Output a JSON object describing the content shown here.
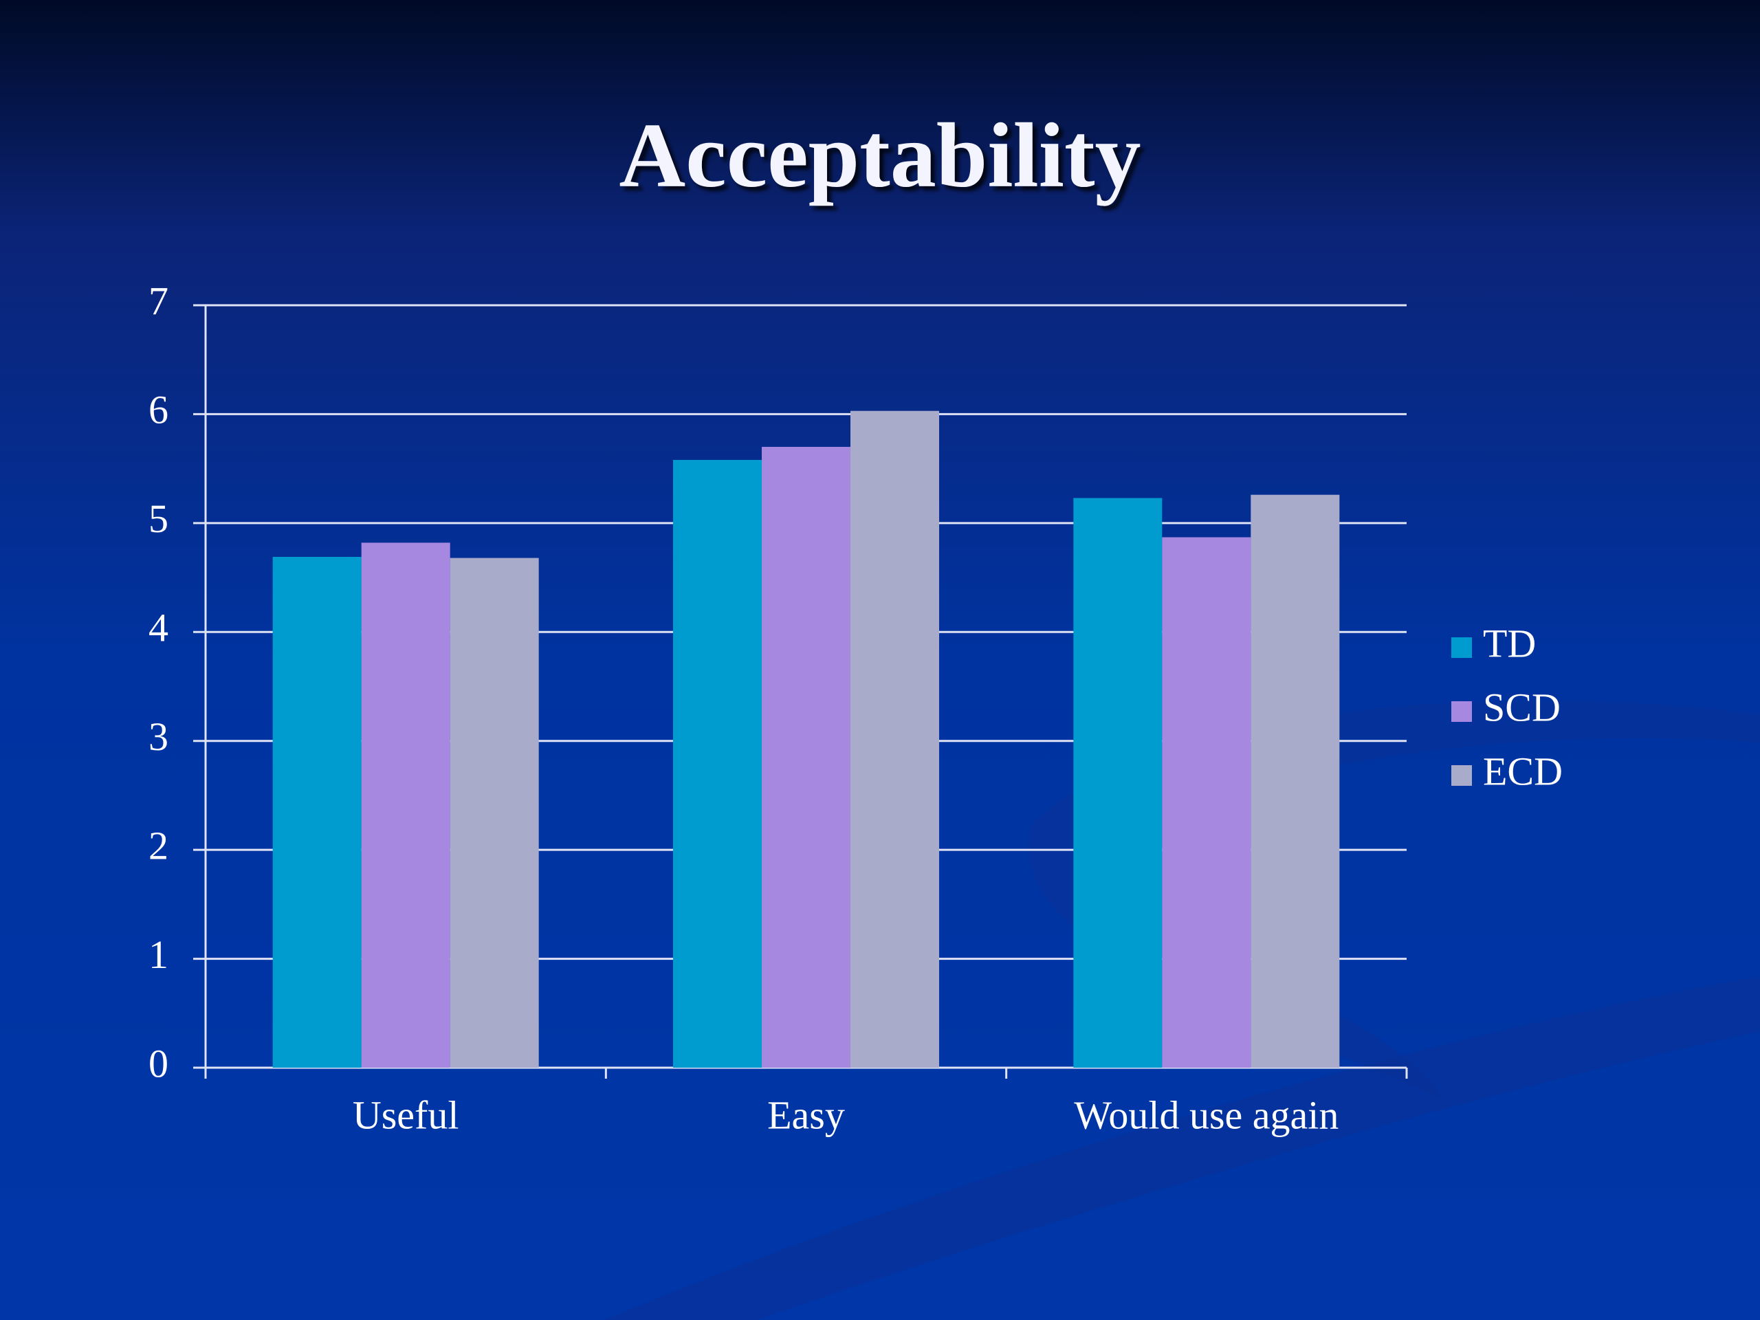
{
  "chart_data": {
    "type": "bar",
    "title": "Acceptability",
    "categories": [
      "Useful",
      "Easy",
      "Would use again"
    ],
    "series": [
      {
        "name": "TD",
        "color": "#009ccf",
        "values": [
          4.69,
          5.58,
          5.23
        ]
      },
      {
        "name": "SCD",
        "color": "#a688e0",
        "values": [
          4.82,
          5.7,
          4.87
        ]
      },
      {
        "name": "ECD",
        "color": "#a9abcb",
        "values": [
          4.68,
          6.03,
          5.26
        ]
      }
    ],
    "ylim": [
      0,
      7
    ],
    "yticks": [
      0,
      1,
      2,
      3,
      4,
      5,
      6,
      7
    ],
    "grid": true,
    "legend": "right"
  }
}
